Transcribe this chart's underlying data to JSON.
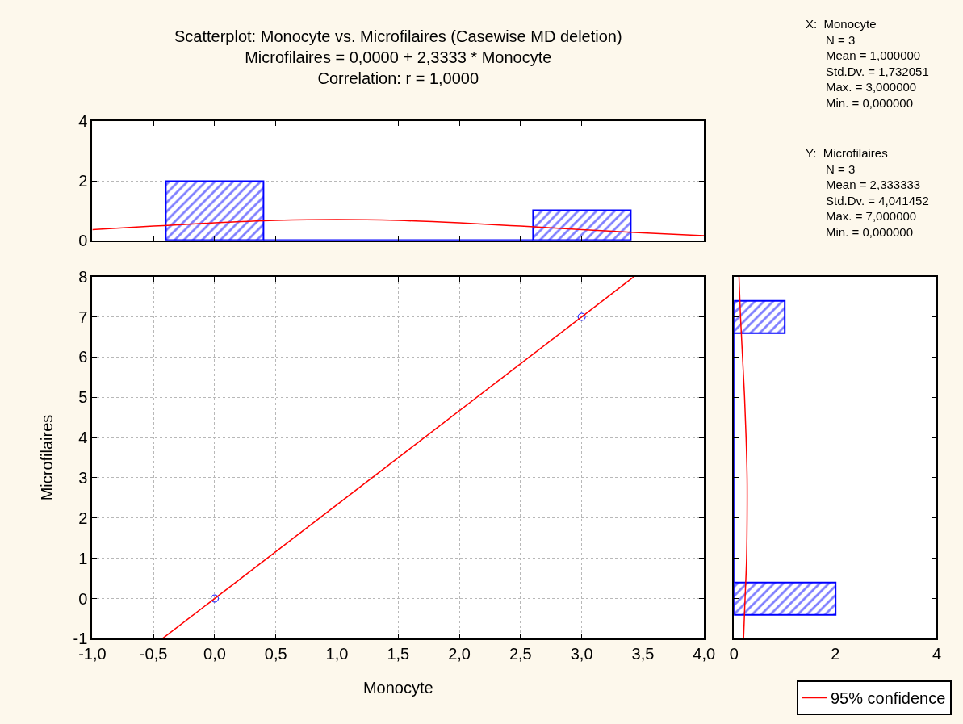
{
  "chart_data": [
    {
      "type": "histogram",
      "title": "Scatterplot: Monocyte vs. Microfilaires (Casewise MD deletion)",
      "subtitle": "Microfilaires = 0,0000 + 2,3333 * Monocyte\nCorrelation: r = 1,0000",
      "annotations": [
        "X:  Monocyte\n    N = 3\n    Mean = 1,000000\n    Std.Dv. = 1,732051\n    Max. = 3,000000\n    Min. = 0,000000",
        "Y:  Microfilaires\n    N = 3\n    Mean = 2,333333\n    Std.Dv. = 4,041452\n    Max. = 7,000000\n    Min. = 0,000000"
      ],
      "bins": [
        -0.4,
        0.4,
        2.6,
        3.4
      ],
      "values": [
        2,
        0,
        1
      ],
      "color": "#0000ff",
      "series": [
        {
          "type": "line",
          "color": "#ff0000",
          "x": [
            -1,
            -0.5,
            0,
            0.5,
            1,
            1.5,
            2,
            2.5,
            3,
            3.5,
            4
          ],
          "values": [
            0.36,
            0.48,
            0.59,
            0.67,
            0.7,
            0.67,
            0.59,
            0.48,
            0.36,
            0.25,
            0.16
          ]
        }
      ],
      "xlim": [
        -1,
        4
      ],
      "xticks": [
        {
          "value": -1,
          "label": null
        },
        {
          "value": -0.5,
          "label": null
        },
        {
          "value": 0,
          "label": null
        },
        {
          "value": 0.5,
          "label": null
        },
        {
          "value": 1,
          "label": null
        },
        {
          "value": 1.5,
          "label": null
        },
        {
          "value": 2,
          "label": null
        },
        {
          "value": 2.5,
          "label": null
        },
        {
          "value": 3,
          "label": null
        },
        {
          "value": 3.5,
          "label": null
        },
        {
          "value": 4,
          "label": null
        }
      ],
      "ylim": [
        0,
        4
      ],
      "yticks": [
        0,
        2,
        4
      ],
      "grid": "y",
      "tick_labels": "y"
    },
    {
      "type": "scatter",
      "xlabel": "Monocyte",
      "ylabel": "Microfilaires",
      "legend": "bottom right",
      "grid": true,
      "series": [
        {
          "type": "scatter",
          "marker": "circle",
          "color": "#0000ff",
          "x": [
            0,
            3
          ],
          "values": [
            0,
            7
          ]
        },
        {
          "type": "line",
          "marker": "none",
          "name": "95% confidence",
          "color": "#ff0000",
          "x": [
            -0.4286,
            3.4286
          ],
          "values": [
            -1,
            8
          ]
        }
      ],
      "xlim": [
        -1,
        4
      ],
      "xticks": [
        {
          "value": -1,
          "label": "-1,0"
        },
        {
          "value": -0.5,
          "label": "-0,5"
        },
        {
          "value": 0,
          "label": "0,0"
        },
        {
          "value": 0.5,
          "label": "0,5"
        },
        {
          "value": 1,
          "label": "1,0"
        },
        {
          "value": 1.5,
          "label": "1,5"
        },
        {
          "value": 2,
          "label": "2,0"
        },
        {
          "value": 2.5,
          "label": "2,5"
        },
        {
          "value": 3,
          "label": "3,0"
        },
        {
          "value": 3.5,
          "label": "3,5"
        },
        {
          "value": 4,
          "label": "4,0"
        }
      ],
      "ylim": [
        -1,
        8
      ],
      "yticks": [
        -1,
        0,
        1,
        2,
        3,
        4,
        5,
        6,
        7,
        8
      ]
    },
    {
      "type": "histogram",
      "orientation": "horizontal",
      "bins": [
        -0.4,
        0.4,
        6.6,
        7.4
      ],
      "values": [
        2,
        0,
        1
      ],
      "color": "#0000ff",
      "series": [
        {
          "type": "line",
          "color": "#ff0000",
          "x": [
            -1,
            0,
            1,
            2,
            3,
            4,
            5,
            6,
            7,
            8
          ],
          "values": [
            0.19,
            0.22,
            0.25,
            0.26,
            0.26,
            0.24,
            0.21,
            0.17,
            0.13,
            0.1
          ]
        }
      ],
      "xlim": [
        0,
        4
      ],
      "xticks": [
        0,
        2,
        4
      ],
      "ylim": [
        -1,
        8
      ],
      "yticks": [
        {
          "value": -1,
          "label": null
        },
        {
          "value": 0,
          "label": null
        },
        {
          "value": 1,
          "label": null
        },
        {
          "value": 2,
          "label": null
        },
        {
          "value": 3,
          "label": null
        },
        {
          "value": 4,
          "label": null
        },
        {
          "value": 5,
          "label": null
        },
        {
          "value": 6,
          "label": null
        },
        {
          "value": 7,
          "label": null
        },
        {
          "value": 8,
          "label": null
        }
      ],
      "grid": "x",
      "tick_labels": "x"
    }
  ]
}
